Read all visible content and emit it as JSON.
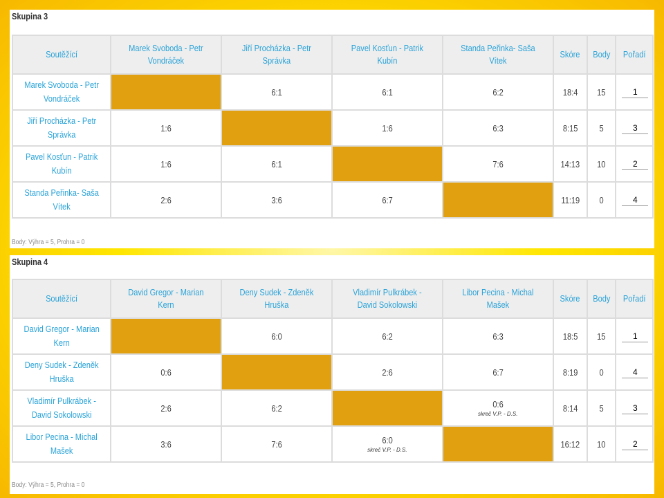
{
  "groups": [
    {
      "title": "Skupina 3",
      "headers": {
        "competitors": "Soutěžící",
        "teams": [
          "Marek Svoboda - Petr Vondráček",
          "Jiří Procházka - Petr Správka",
          "Pavel Kosťun - Patrik Kubín",
          "Standa Peřinka- Saša Vítek"
        ],
        "score": "Skóre",
        "points": "Body",
        "rank": "Pořadí"
      },
      "rows": [
        {
          "name": "Marek Svoboda - Petr Vondráček",
          "results": [
            "",
            "6:1",
            "6:1",
            "6:2"
          ],
          "notes": [
            "",
            "",
            "",
            ""
          ],
          "score": "18:4",
          "points": "15",
          "rank": "1"
        },
        {
          "name": "Jiří Procházka - Petr Správka",
          "results": [
            "1:6",
            "",
            "1:6",
            "6:3"
          ],
          "notes": [
            "",
            "",
            "",
            ""
          ],
          "score": "8:15",
          "points": "5",
          "rank": "3"
        },
        {
          "name": "Pavel Kosťun - Patrik Kubín",
          "results": [
            "1:6",
            "6:1",
            "",
            "7:6"
          ],
          "notes": [
            "",
            "",
            "",
            ""
          ],
          "score": "14:13",
          "points": "10",
          "rank": "2"
        },
        {
          "name": "Standa Peřinka- Saša Vítek",
          "results": [
            "2:6",
            "3:6",
            "6:7",
            ""
          ],
          "notes": [
            "",
            "",
            "",
            ""
          ],
          "score": "11:19",
          "points": "0",
          "rank": "4"
        }
      ],
      "footnote": "Body: Výhra = 5, Prohra = 0"
    },
    {
      "title": "Skupina 4",
      "headers": {
        "competitors": "Soutěžící",
        "teams": [
          "David Gregor - Marian Kern",
          "Deny Sudek - Zdeněk Hruška",
          "Vladimír Pulkrábek - David Sokolowski",
          "Libor Pecina - Michal Mašek"
        ],
        "score": "Skóre",
        "points": "Body",
        "rank": "Pořadí"
      },
      "rows": [
        {
          "name": "David Gregor - Marian Kern",
          "results": [
            "",
            "6:0",
            "6:2",
            "6:3"
          ],
          "notes": [
            "",
            "",
            "",
            ""
          ],
          "score": "18:5",
          "points": "15",
          "rank": "1"
        },
        {
          "name": "Deny Sudek - Zdeněk Hruška",
          "results": [
            "0:6",
            "",
            "2:6",
            "6:7"
          ],
          "notes": [
            "",
            "",
            "",
            ""
          ],
          "score": "8:19",
          "points": "0",
          "rank": "4"
        },
        {
          "name": "Vladimír Pulkrábek - David Sokolowski",
          "results": [
            "2:6",
            "6:2",
            "",
            "0:6"
          ],
          "notes": [
            "",
            "",
            "",
            "skreč V.P. - D.S."
          ],
          "score": "8:14",
          "points": "5",
          "rank": "3"
        },
        {
          "name": "Libor Pecina - Michal Mašek",
          "results": [
            "3:6",
            "7:6",
            "6:0",
            ""
          ],
          "notes": [
            "",
            "",
            "skreč V.P. - D.S.",
            ""
          ],
          "score": "16:12",
          "points": "10",
          "rank": "2"
        }
      ],
      "footnote": "Body: Výhra = 5, Prohra = 0"
    }
  ],
  "colors": {
    "self_cell": "#e0a010",
    "link_text": "#2aa3d8",
    "header_bg": "#eeeeee",
    "frame": "#ffe600"
  }
}
